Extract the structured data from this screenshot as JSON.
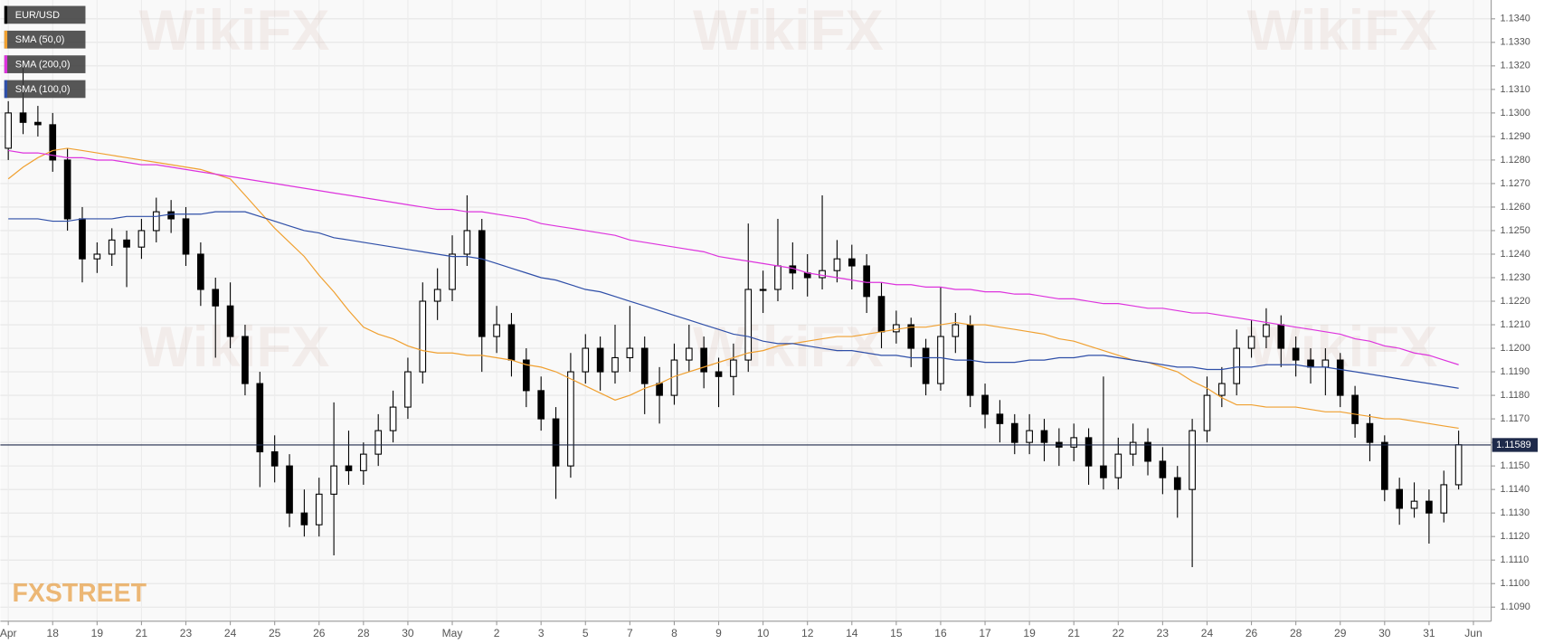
{
  "chart_data": {
    "type": "candlestick",
    "watermark": "WikiFX",
    "brand": "FXSTREET",
    "last_price": 1.11589,
    "ylim": [
      1.1084,
      1.1348
    ],
    "yticks": [
      {
        "value": 1.109,
        "label": "1.1090"
      },
      {
        "value": 1.11,
        "label": "1.1100"
      },
      {
        "value": 1.111,
        "label": "1.1110"
      },
      {
        "value": 1.112,
        "label": "1.1120"
      },
      {
        "value": 1.113,
        "label": "1.1130"
      },
      {
        "value": 1.114,
        "label": "1.1140"
      },
      {
        "value": 1.115,
        "label": "1.1150"
      },
      {
        "value": 1.116,
        "label": "1.1160"
      },
      {
        "value": 1.117,
        "label": "1.1170"
      },
      {
        "value": 1.118,
        "label": "1.1180"
      },
      {
        "value": 1.119,
        "label": "1.1190"
      },
      {
        "value": 1.12,
        "label": "1.1200"
      },
      {
        "value": 1.121,
        "label": "1.1210"
      },
      {
        "value": 1.122,
        "label": "1.1220"
      },
      {
        "value": 1.123,
        "label": "1.1230"
      },
      {
        "value": 1.124,
        "label": "1.1240"
      },
      {
        "value": 1.125,
        "label": "1.1250"
      },
      {
        "value": 1.126,
        "label": "1.1260"
      },
      {
        "value": 1.127,
        "label": "1.1270"
      },
      {
        "value": 1.128,
        "label": "1.1280"
      },
      {
        "value": 1.129,
        "label": "1.1290"
      },
      {
        "value": 1.13,
        "label": "1.1300"
      },
      {
        "value": 1.131,
        "label": "1.1310"
      },
      {
        "value": 1.132,
        "label": "1.1320"
      },
      {
        "value": 1.133,
        "label": "1.1330"
      },
      {
        "value": 1.134,
        "label": "1.1340"
      }
    ],
    "grid": true,
    "categories": [
      "Apr",
      null,
      null,
      "18",
      null,
      null,
      "19",
      null,
      null,
      "21",
      null,
      null,
      "23",
      null,
      null,
      "24",
      null,
      null,
      "25",
      null,
      null,
      "26",
      null,
      null,
      "28",
      null,
      null,
      "30",
      null,
      null,
      "May",
      null,
      null,
      "2",
      null,
      null,
      "3",
      null,
      null,
      "5",
      null,
      null,
      "7",
      null,
      null,
      "8",
      null,
      null,
      "9",
      null,
      null,
      "10",
      null,
      null,
      "12",
      null,
      null,
      "14",
      null,
      null,
      "15",
      null,
      null,
      "16",
      null,
      null,
      "17",
      null,
      null,
      "19",
      null,
      null,
      "21",
      null,
      null,
      "22",
      null,
      null,
      "23",
      null,
      null,
      "24",
      null,
      null,
      "26",
      null,
      null,
      "28",
      null,
      null,
      "29",
      null,
      null,
      "30",
      null,
      null,
      "31",
      null,
      null,
      "Jun"
    ],
    "series": [
      {
        "name": "EUR/USD",
        "color": "#000000",
        "open": [
          1.1285,
          1.13,
          1.1296,
          1.1295,
          1.128,
          1.1255,
          1.1238,
          1.124,
          1.1246,
          1.1243,
          1.125,
          1.1258,
          1.1255,
          1.124,
          1.1225,
          1.1218,
          1.1205,
          1.1185,
          1.1156,
          1.115,
          1.113,
          1.1125,
          1.1138,
          1.115,
          1.1148,
          1.1155,
          1.1165,
          1.1175,
          1.119,
          1.122,
          1.1225,
          1.124,
          1.125,
          1.1205,
          1.121,
          1.1195,
          1.1182,
          1.117,
          1.115,
          1.119,
          1.12,
          1.119,
          1.1196,
          1.12,
          1.1185,
          1.118,
          1.1195,
          1.12,
          1.119,
          1.1188,
          1.1195,
          1.1225,
          1.1225,
          1.1235,
          1.1232,
          1.123,
          1.1233,
          1.1238,
          1.1235,
          1.1222,
          1.1207,
          1.121,
          1.12,
          1.1185,
          1.1205,
          1.121,
          1.118,
          1.1172,
          1.1168,
          1.116,
          1.1165,
          1.116,
          1.1158,
          1.1162,
          1.115,
          1.1145,
          1.1155,
          1.116,
          1.1152,
          1.1145,
          1.114,
          1.1165,
          1.118,
          1.1185,
          1.12,
          1.1205,
          1.121,
          1.12,
          1.1195,
          1.1192,
          1.1195,
          1.118,
          1.1168,
          1.116,
          1.114,
          1.1132,
          1.1135,
          1.113,
          1.1142,
          null
        ],
        "high": [
          1.1305,
          1.132,
          1.1303,
          1.13,
          1.1285,
          1.126,
          1.1245,
          1.1251,
          1.125,
          1.1255,
          1.1264,
          1.1263,
          1.126,
          1.1245,
          1.123,
          1.1228,
          1.121,
          1.119,
          1.1163,
          1.1155,
          1.114,
          1.1145,
          1.1177,
          1.1165,
          1.116,
          1.1172,
          1.1182,
          1.1196,
          1.1228,
          1.1234,
          1.1248,
          1.1265,
          1.1255,
          1.1218,
          1.1215,
          1.12,
          1.1188,
          1.1175,
          1.1198,
          1.1206,
          1.1205,
          1.121,
          1.1218,
          1.1205,
          1.1192,
          1.1202,
          1.121,
          1.1205,
          1.1196,
          1.1202,
          1.1253,
          1.1233,
          1.1255,
          1.1245,
          1.124,
          1.1265,
          1.1246,
          1.1244,
          1.124,
          1.1228,
          1.1216,
          1.1213,
          1.1204,
          1.1226,
          1.1215,
          1.1214,
          1.1185,
          1.1178,
          1.1172,
          1.1172,
          1.117,
          1.1166,
          1.1168,
          1.1166,
          1.1188,
          1.1162,
          1.1168,
          1.1166,
          1.1158,
          1.115,
          1.117,
          1.1188,
          1.1192,
          1.1208,
          1.1212,
          1.1217,
          1.1214,
          1.1205,
          1.12,
          1.12,
          1.1198,
          1.1184,
          1.1172,
          1.1163,
          1.1145,
          1.1143,
          1.114,
          1.1148,
          1.1165,
          null
        ],
        "low": [
          1.128,
          1.1291,
          1.129,
          1.1275,
          1.125,
          1.1228,
          1.1232,
          1.1235,
          1.1226,
          1.1238,
          1.1245,
          1.1249,
          1.1235,
          1.1218,
          1.1196,
          1.12,
          1.118,
          1.1141,
          1.1143,
          1.1124,
          1.112,
          1.112,
          1.1112,
          1.1142,
          1.1142,
          1.115,
          1.116,
          1.117,
          1.1185,
          1.1212,
          1.122,
          1.1235,
          1.119,
          1.1198,
          1.1188,
          1.1175,
          1.1165,
          1.1136,
          1.1145,
          1.1185,
          1.1182,
          1.1185,
          1.119,
          1.1172,
          1.1168,
          1.1176,
          1.119,
          1.1183,
          1.1175,
          1.118,
          1.119,
          1.1215,
          1.122,
          1.1225,
          1.1222,
          1.1225,
          1.1228,
          1.1225,
          1.1215,
          1.12,
          1.1202,
          1.1192,
          1.118,
          1.1182,
          1.1198,
          1.1175,
          1.1166,
          1.116,
          1.1155,
          1.1155,
          1.1152,
          1.115,
          1.1152,
          1.1142,
          1.114,
          1.114,
          1.115,
          1.1146,
          1.1138,
          1.1128,
          1.1107,
          1.116,
          1.1175,
          1.118,
          1.1196,
          1.12,
          1.1192,
          1.1188,
          1.1185,
          1.118,
          1.1175,
          1.1162,
          1.1152,
          1.1135,
          1.1125,
          1.1128,
          1.1117,
          1.1126,
          1.114,
          null
        ],
        "close": [
          1.13,
          1.1296,
          1.1295,
          1.128,
          1.1255,
          1.1238,
          1.124,
          1.1246,
          1.1243,
          1.125,
          1.1258,
          1.1255,
          1.124,
          1.1225,
          1.1218,
          1.1205,
          1.1185,
          1.1156,
          1.115,
          1.113,
          1.1125,
          1.1138,
          1.115,
          1.1148,
          1.1155,
          1.1165,
          1.1175,
          1.119,
          1.122,
          1.1225,
          1.124,
          1.125,
          1.1205,
          1.121,
          1.1195,
          1.1182,
          1.117,
          1.115,
          1.119,
          1.12,
          1.119,
          1.1196,
          1.12,
          1.1185,
          1.118,
          1.1195,
          1.12,
          1.119,
          1.1188,
          1.1195,
          1.1225,
          1.1225,
          1.1235,
          1.1232,
          1.123,
          1.1233,
          1.1238,
          1.1235,
          1.1222,
          1.1207,
          1.121,
          1.12,
          1.1185,
          1.1205,
          1.121,
          1.118,
          1.1172,
          1.1168,
          1.116,
          1.1165,
          1.116,
          1.1158,
          1.1162,
          1.115,
          1.1145,
          1.1155,
          1.116,
          1.1152,
          1.1145,
          1.114,
          1.1165,
          1.118,
          1.1185,
          1.12,
          1.1205,
          1.121,
          1.12,
          1.1195,
          1.1192,
          1.1195,
          1.118,
          1.1168,
          1.116,
          1.114,
          1.1132,
          1.1135,
          1.113,
          1.1142,
          1.1159,
          null
        ]
      },
      {
        "name": "SMA (50,0)",
        "color": "#f0a030",
        "values": [
          1.1272,
          1.1277,
          1.1281,
          1.1284,
          1.1285,
          1.1284,
          1.1283,
          1.1282,
          1.1281,
          1.128,
          1.1279,
          1.1278,
          1.1277,
          1.1276,
          1.1274,
          1.1272,
          1.1265,
          1.1258,
          1.1251,
          1.1245,
          1.1239,
          1.1231,
          1.1224,
          1.1216,
          1.1209,
          1.1206,
          1.1204,
          1.1201,
          1.1199,
          1.1198,
          1.1198,
          1.1197,
          1.1197,
          1.1196,
          1.1195,
          1.1193,
          1.1192,
          1.119,
          1.1187,
          1.1184,
          1.1181,
          1.1178,
          1.118,
          1.1183,
          1.1185,
          1.1188,
          1.119,
          1.1192,
          1.1194,
          1.1196,
          1.1198,
          1.1199,
          1.1201,
          1.1202,
          1.1203,
          1.1204,
          1.1205,
          1.1205,
          1.1206,
          1.1207,
          1.1208,
          1.1209,
          1.1209,
          1.121,
          1.1211,
          1.121,
          1.121,
          1.1209,
          1.1208,
          1.1207,
          1.1206,
          1.1204,
          1.1203,
          1.1201,
          1.1199,
          1.1197,
          1.1195,
          1.1194,
          1.1192,
          1.119,
          1.1186,
          1.1183,
          1.1179,
          1.1176,
          1.1176,
          1.1175,
          1.1175,
          1.1175,
          1.1174,
          1.1173,
          1.1173,
          1.1172,
          1.1171,
          1.117,
          1.117,
          1.1169,
          1.1168,
          1.1167,
          1.1166,
          null
        ]
      },
      {
        "name": "SMA (200,0)",
        "color": "#dd33dd",
        "values": [
          1.1284,
          1.1283,
          1.1283,
          1.1282,
          1.1281,
          1.1281,
          1.128,
          1.128,
          1.1279,
          1.1278,
          1.1278,
          1.1277,
          1.1276,
          1.1275,
          1.1274,
          1.1273,
          1.1272,
          1.1271,
          1.127,
          1.1269,
          1.1268,
          1.1267,
          1.1266,
          1.1265,
          1.1264,
          1.1263,
          1.1262,
          1.1261,
          1.126,
          1.1259,
          1.1259,
          1.1258,
          1.1258,
          1.1257,
          1.1256,
          1.1255,
          1.1253,
          1.1252,
          1.1251,
          1.125,
          1.1249,
          1.1248,
          1.1246,
          1.1245,
          1.1244,
          1.1243,
          1.1242,
          1.1241,
          1.1239,
          1.1238,
          1.1237,
          1.1236,
          1.1235,
          1.1234,
          1.1232,
          1.1231,
          1.123,
          1.1229,
          1.1228,
          1.1228,
          1.1227,
          1.1227,
          1.1226,
          1.1226,
          1.1225,
          1.1225,
          1.1224,
          1.1224,
          1.1223,
          1.1223,
          1.1222,
          1.1221,
          1.1221,
          1.122,
          1.1219,
          1.1219,
          1.1218,
          1.1217,
          1.1217,
          1.1216,
          1.1215,
          1.1215,
          1.1214,
          1.1213,
          1.1212,
          1.1211,
          1.121,
          1.1209,
          1.1208,
          1.1207,
          1.1206,
          1.1204,
          1.1203,
          1.1201,
          1.12,
          1.1198,
          1.1197,
          1.1195,
          1.1193,
          null
        ]
      },
      {
        "name": "SMA (100,0)",
        "color": "#2f4fa8",
        "values": [
          1.1255,
          1.1255,
          1.1255,
          1.1254,
          1.1254,
          1.1255,
          1.1255,
          1.1255,
          1.1256,
          1.1256,
          1.1256,
          1.1257,
          1.1257,
          1.1257,
          1.1258,
          1.1258,
          1.1258,
          1.1256,
          1.1254,
          1.1252,
          1.125,
          1.1249,
          1.1247,
          1.1246,
          1.1245,
          1.1244,
          1.1243,
          1.1242,
          1.1241,
          1.124,
          1.1239,
          1.1239,
          1.1238,
          1.1236,
          1.1234,
          1.1232,
          1.123,
          1.1229,
          1.1227,
          1.1225,
          1.1224,
          1.1222,
          1.122,
          1.1218,
          1.1216,
          1.1214,
          1.1212,
          1.121,
          1.1208,
          1.1206,
          1.1205,
          1.1203,
          1.1202,
          1.1202,
          1.1201,
          1.12,
          1.1199,
          1.1199,
          1.1198,
          1.1197,
          1.1197,
          1.1196,
          1.1196,
          1.1196,
          1.1195,
          1.1195,
          1.1194,
          1.1194,
          1.1194,
          1.1195,
          1.1195,
          1.1196,
          1.1196,
          1.1197,
          1.1197,
          1.1196,
          1.1195,
          1.1194,
          1.1193,
          1.1192,
          1.1192,
          1.1191,
          1.1191,
          1.1192,
          1.1192,
          1.1193,
          1.1193,
          1.1193,
          1.1192,
          1.1192,
          1.1191,
          1.119,
          1.1189,
          1.1188,
          1.1187,
          1.1186,
          1.1185,
          1.1184,
          1.1183,
          null
        ]
      }
    ]
  }
}
